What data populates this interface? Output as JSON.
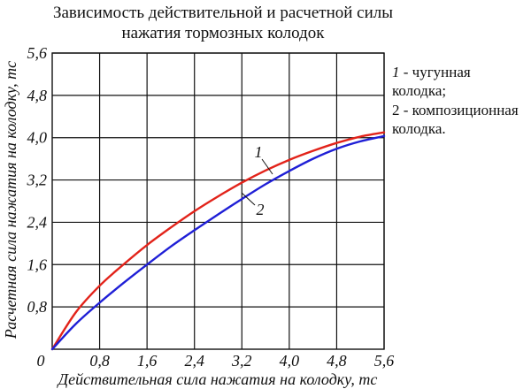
{
  "chart_data": {
    "type": "line",
    "title_lines": [
      "Зависимость действительной и расчетной силы",
      "нажатия тормозных колодок"
    ],
    "xlabel": "Действительная сила нажатия на колодку, тс",
    "ylabel": "Расчетная сила нажатия на колодку, тс",
    "xlim": [
      0,
      5.6
    ],
    "ylim": [
      0,
      5.6
    ],
    "x_ticks": [
      "0,8",
      "1,6",
      "2,4",
      "3,2",
      "4,0",
      "4,8",
      "5,6"
    ],
    "y_ticks": [
      "0,8",
      "1,6",
      "2,4",
      "3,2",
      "4,0",
      "4,8",
      "5,6"
    ],
    "origin_label": "0",
    "grid": true,
    "series": [
      {
        "name": "1",
        "color": "#e2231a",
        "x": [
          0,
          0.4,
          0.8,
          1.2,
          1.6,
          2.0,
          2.4,
          2.8,
          3.2,
          3.6,
          4.0,
          4.4,
          4.8,
          5.2,
          5.6
        ],
        "y": [
          0,
          0.7,
          1.2,
          1.6,
          1.97,
          2.3,
          2.61,
          2.89,
          3.15,
          3.38,
          3.58,
          3.75,
          3.9,
          4.02,
          4.1
        ]
      },
      {
        "name": "2",
        "color": "#1f1fd6",
        "x": [
          0,
          0.4,
          0.8,
          1.2,
          1.6,
          2.0,
          2.4,
          2.8,
          3.2,
          3.6,
          4.0,
          4.4,
          4.8,
          5.2,
          5.6
        ],
        "y": [
          0,
          0.48,
          0.88,
          1.25,
          1.6,
          1.94,
          2.25,
          2.55,
          2.84,
          3.12,
          3.37,
          3.6,
          3.79,
          3.93,
          4.03
        ]
      }
    ],
    "curve_labels": [
      {
        "text": "1",
        "series": "1"
      },
      {
        "text": "2",
        "series": "2"
      }
    ],
    "legend": [
      {
        "num": "1",
        "text": " - чугунная",
        "line2": "колодка;"
      },
      {
        "num": "2",
        "text": " - композиционная",
        "line2": "колодка."
      }
    ]
  }
}
